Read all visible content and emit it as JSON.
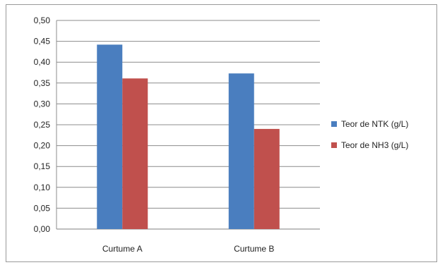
{
  "chart_data": {
    "type": "bar",
    "categories": [
      "Curtume A",
      "Curtume B"
    ],
    "series": [
      {
        "name": "Teor de NTK (g/L)",
        "values": [
          0.442,
          0.373
        ],
        "color": "#4a7ebf"
      },
      {
        "name": "Teor de NH3 (g/L)",
        "values": [
          0.361,
          0.24
        ],
        "color": "#c0504d"
      }
    ],
    "ylim": [
      0,
      0.5
    ],
    "yticks": [
      "0,00",
      "0,05",
      "0,10",
      "0,15",
      "0,20",
      "0,25",
      "0,30",
      "0,35",
      "0,40",
      "0,45",
      "0,50"
    ],
    "grid": true,
    "legend_position": "right",
    "title": "",
    "xlabel": "",
    "ylabel": ""
  }
}
